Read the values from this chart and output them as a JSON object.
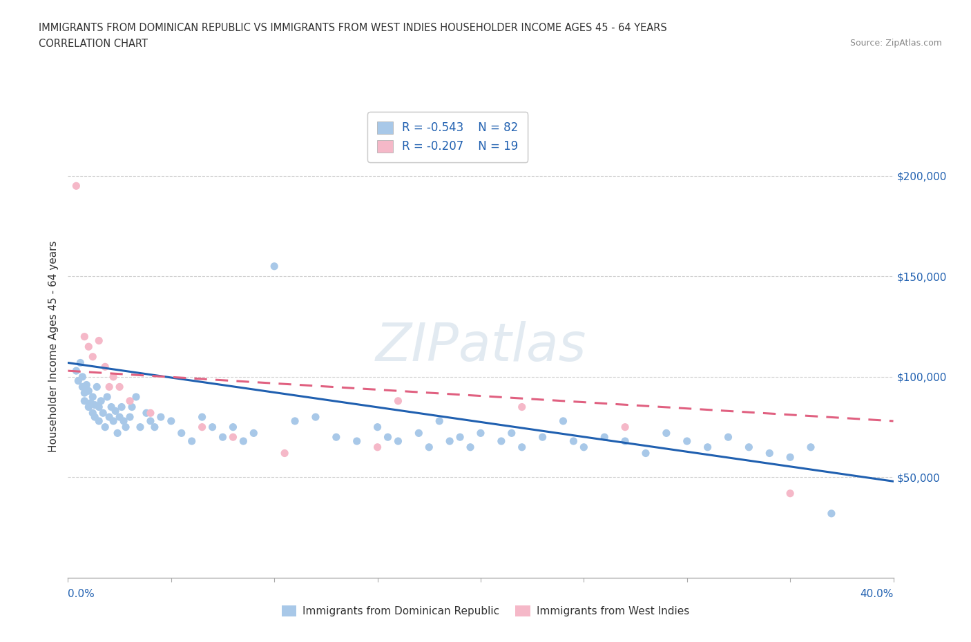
{
  "title_line1": "IMMIGRANTS FROM DOMINICAN REPUBLIC VS IMMIGRANTS FROM WEST INDIES HOUSEHOLDER INCOME AGES 45 - 64 YEARS",
  "title_line2": "CORRELATION CHART",
  "source_text": "Source: ZipAtlas.com",
  "ylabel": "Householder Income Ages 45 - 64 years",
  "xlim": [
    0,
    0.4
  ],
  "ylim": [
    0,
    230000
  ],
  "xticks": [
    0.0,
    0.05,
    0.1,
    0.15,
    0.2,
    0.25,
    0.3,
    0.35,
    0.4
  ],
  "yticks": [
    0,
    50000,
    100000,
    150000,
    200000
  ],
  "watermark": "ZIPatlas",
  "legend_R1": "-0.543",
  "legend_N1": "82",
  "legend_R2": "-0.207",
  "legend_N2": "19",
  "series1_color": "#a8c8e8",
  "series2_color": "#f5b8c8",
  "trendline1_color": "#2060b0",
  "trendline2_color": "#e06080",
  "series1_label": "Immigrants from Dominican Republic",
  "series2_label": "Immigrants from West Indies",
  "blue_x": [
    0.004,
    0.005,
    0.006,
    0.007,
    0.007,
    0.008,
    0.008,
    0.009,
    0.01,
    0.01,
    0.011,
    0.012,
    0.012,
    0.013,
    0.013,
    0.014,
    0.015,
    0.015,
    0.016,
    0.017,
    0.018,
    0.019,
    0.02,
    0.021,
    0.022,
    0.023,
    0.024,
    0.025,
    0.026,
    0.027,
    0.028,
    0.03,
    0.031,
    0.033,
    0.035,
    0.038,
    0.04,
    0.042,
    0.045,
    0.05,
    0.055,
    0.06,
    0.065,
    0.07,
    0.075,
    0.08,
    0.085,
    0.09,
    0.1,
    0.11,
    0.12,
    0.13,
    0.14,
    0.15,
    0.155,
    0.16,
    0.17,
    0.175,
    0.18,
    0.185,
    0.19,
    0.195,
    0.2,
    0.21,
    0.215,
    0.22,
    0.23,
    0.24,
    0.245,
    0.25,
    0.26,
    0.27,
    0.28,
    0.29,
    0.3,
    0.31,
    0.32,
    0.33,
    0.34,
    0.35,
    0.36,
    0.37
  ],
  "blue_y": [
    103000,
    98000,
    107000,
    95000,
    100000,
    92000,
    88000,
    96000,
    85000,
    93000,
    87000,
    82000,
    90000,
    80000,
    86000,
    95000,
    85000,
    78000,
    88000,
    82000,
    75000,
    90000,
    80000,
    85000,
    78000,
    83000,
    72000,
    80000,
    85000,
    78000,
    75000,
    80000,
    85000,
    90000,
    75000,
    82000,
    78000,
    75000,
    80000,
    78000,
    72000,
    68000,
    80000,
    75000,
    70000,
    75000,
    68000,
    72000,
    155000,
    78000,
    80000,
    70000,
    68000,
    75000,
    70000,
    68000,
    72000,
    65000,
    78000,
    68000,
    70000,
    65000,
    72000,
    68000,
    72000,
    65000,
    70000,
    78000,
    68000,
    65000,
    70000,
    68000,
    62000,
    72000,
    68000,
    65000,
    70000,
    65000,
    62000,
    60000,
    65000,
    32000
  ],
  "pink_x": [
    0.004,
    0.008,
    0.01,
    0.012,
    0.015,
    0.018,
    0.02,
    0.022,
    0.025,
    0.03,
    0.04,
    0.065,
    0.08,
    0.105,
    0.15,
    0.16,
    0.22,
    0.27,
    0.35
  ],
  "pink_y": [
    195000,
    120000,
    115000,
    110000,
    118000,
    105000,
    95000,
    100000,
    95000,
    88000,
    82000,
    75000,
    70000,
    62000,
    65000,
    88000,
    85000,
    75000,
    42000
  ],
  "trend1_x0": 0.0,
  "trend1_x1": 0.4,
  "trend1_y0": 107000,
  "trend1_y1": 48000,
  "trend2_x0": 0.0,
  "trend2_x1": 0.4,
  "trend2_y0": 103000,
  "trend2_y1": 78000,
  "background_color": "#ffffff",
  "grid_color": "#bbbbbb"
}
